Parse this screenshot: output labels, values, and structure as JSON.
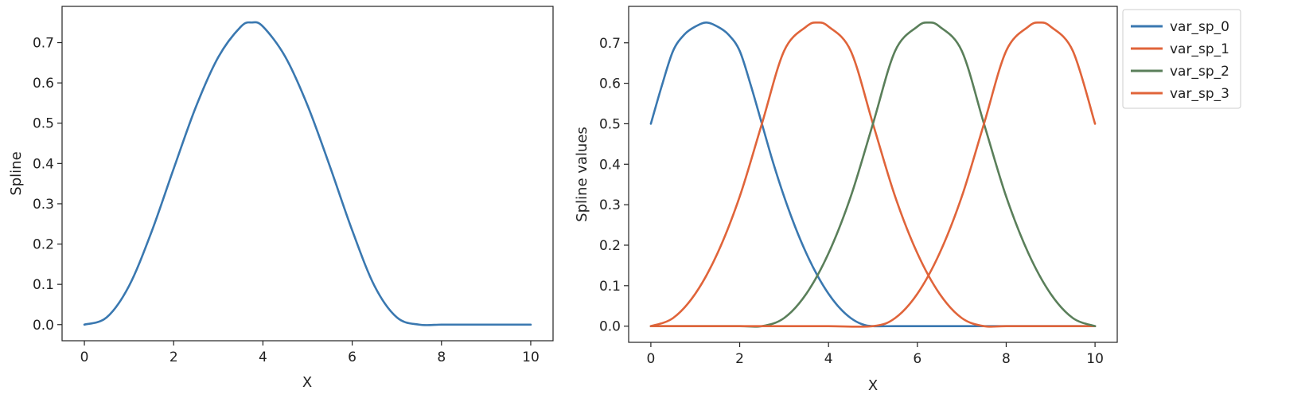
{
  "chart_data": [
    {
      "type": "line",
      "xlabel": "X",
      "ylabel": "Spline",
      "xlim": [
        -0.5,
        10.5
      ],
      "ylim": [
        -0.04,
        0.79
      ],
      "xticks": [
        0,
        2,
        4,
        6,
        8,
        10
      ],
      "yticks": [
        0.0,
        0.1,
        0.2,
        0.3,
        0.4,
        0.5,
        0.6,
        0.7
      ],
      "xtick_labels": [
        "0",
        "2",
        "4",
        "6",
        "8",
        "10"
      ],
      "ytick_labels": [
        "0.0",
        "0.1",
        "0.2",
        "0.3",
        "0.4",
        "0.5",
        "0.6",
        "0.7"
      ],
      "grid": false,
      "series": [
        {
          "color": "#3a78b0",
          "x": [
            0,
            0.5,
            1,
            1.5,
            2,
            2.5,
            3,
            3.5,
            3.75,
            4,
            4.5,
            5,
            5.5,
            6,
            6.5,
            7,
            7.5,
            8,
            8.5,
            9,
            9.5,
            10
          ],
          "y": [
            0,
            0.018,
            0.096,
            0.229,
            0.387,
            0.541,
            0.664,
            0.739,
            0.75,
            0.74,
            0.665,
            0.544,
            0.393,
            0.234,
            0.096,
            0.018,
            0,
            0,
            0,
            0,
            0,
            0
          ]
        }
      ]
    },
    {
      "type": "line",
      "xlabel": "X",
      "ylabel": "Spline values",
      "xlim": [
        -0.5,
        10.5
      ],
      "ylim": [
        -0.04,
        0.79
      ],
      "xticks": [
        0,
        2,
        4,
        6,
        8,
        10
      ],
      "yticks": [
        0.0,
        0.1,
        0.2,
        0.3,
        0.4,
        0.5,
        0.6,
        0.7
      ],
      "xtick_labels": [
        "0",
        "2",
        "4",
        "6",
        "8",
        "10"
      ],
      "ytick_labels": [
        "0.0",
        "0.1",
        "0.2",
        "0.3",
        "0.4",
        "0.5",
        "0.6",
        "0.7"
      ],
      "grid": false,
      "legend": "outside-top-right",
      "series": [
        {
          "name": "var_sp_0",
          "color": "#3a78b0",
          "x": [
            0,
            0.25,
            0.5,
            0.75,
            1,
            1.25,
            1.5,
            1.75,
            2,
            2.25,
            2.5,
            2.75,
            3,
            3.25,
            3.5,
            3.75,
            4,
            4.25,
            4.5,
            4.75,
            5,
            5.5,
            6,
            7,
            8,
            9,
            10
          ],
          "y": [
            0.5,
            0.595,
            0.68,
            0.72,
            0.74,
            0.75,
            0.74,
            0.72,
            0.68,
            0.595,
            0.5,
            0.405,
            0.32,
            0.245,
            0.18,
            0.125,
            0.08,
            0.045,
            0.02,
            0.005,
            0,
            0,
            0,
            0,
            0,
            0,
            0
          ]
        },
        {
          "name": "var_sp_1",
          "color": "#e0643a",
          "x": [
            0,
            0.5,
            1,
            1.5,
            2,
            2.5,
            3,
            3.5,
            3.75,
            4,
            4.5,
            5,
            5.5,
            6,
            6.5,
            7,
            7.5,
            8,
            9,
            10
          ],
          "y": [
            0,
            0.02,
            0.08,
            0.18,
            0.32,
            0.5,
            0.68,
            0.74,
            0.75,
            0.74,
            0.68,
            0.5,
            0.32,
            0.18,
            0.08,
            0.02,
            0,
            0,
            0,
            0
          ]
        },
        {
          "name": "var_sp_2",
          "color": "#5a7f5a",
          "x": [
            0,
            1,
            2,
            2.5,
            3,
            3.5,
            4,
            4.5,
            5,
            5.5,
            6,
            6.25,
            6.5,
            7,
            7.5,
            8,
            8.5,
            9,
            9.5,
            10
          ],
          "y": [
            0,
            0,
            0,
            0,
            0.02,
            0.08,
            0.18,
            0.32,
            0.5,
            0.68,
            0.74,
            0.75,
            0.74,
            0.68,
            0.5,
            0.32,
            0.18,
            0.08,
            0.02,
            0
          ]
        },
        {
          "name": "var_sp_3",
          "color": "#e0643a",
          "x": [
            0,
            1,
            2,
            3,
            4,
            5,
            5.5,
            6,
            6.5,
            7,
            7.5,
            8,
            8.5,
            8.75,
            9,
            9.5,
            10
          ],
          "y": [
            0,
            0,
            0,
            0,
            0,
            0,
            0.02,
            0.08,
            0.18,
            0.32,
            0.5,
            0.68,
            0.74,
            0.75,
            0.74,
            0.68,
            0.5
          ]
        }
      ]
    }
  ]
}
